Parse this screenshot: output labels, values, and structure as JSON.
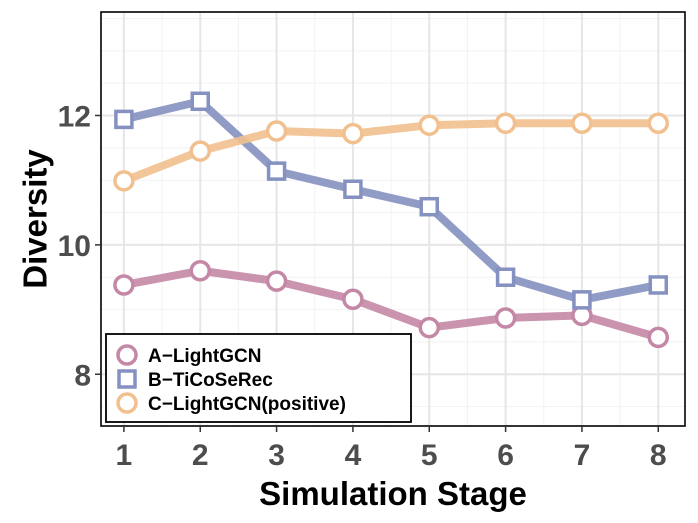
{
  "chart_data": {
    "type": "line",
    "xlabel": "Simulation Stage",
    "ylabel": "Diversity",
    "x": [
      1,
      2,
      3,
      4,
      5,
      6,
      7,
      8
    ],
    "xlim": [
      0.7,
      8.35
    ],
    "ylim": [
      7.2,
      13.6
    ],
    "yticks": [
      8,
      10,
      12
    ],
    "grid": true,
    "legend_position": "bottom-left",
    "series": [
      {
        "name": "A−LightGCN",
        "marker": "circle",
        "color": "#c488a6",
        "values": [
          9.38,
          9.6,
          9.44,
          9.16,
          8.72,
          8.87,
          8.91,
          8.57
        ]
      },
      {
        "name": "B−TiCoSeRec",
        "marker": "square",
        "color": "#8591c0",
        "values": [
          11.94,
          12.22,
          11.14,
          10.86,
          10.59,
          9.5,
          9.15,
          9.38
        ]
      },
      {
        "name": "C−LightGCN(positive)",
        "marker": "circle",
        "color": "#f1c08e",
        "values": [
          10.99,
          11.45,
          11.76,
          11.72,
          11.85,
          11.88,
          11.88,
          11.88
        ]
      }
    ]
  }
}
